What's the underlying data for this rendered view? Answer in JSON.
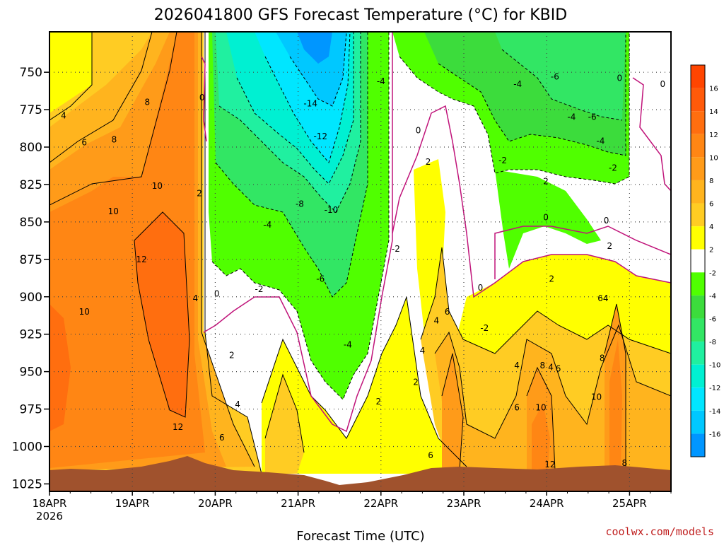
{
  "chart_data": {
    "type": "heatmap",
    "title": "2026041800 GFS Forecast Temperature (°C) for KBID",
    "xlabel": "Forecast Time (UTC)",
    "ylabel": "",
    "x_ticks": [
      {
        "label": "18APR",
        "sub": "2026",
        "day": 0
      },
      {
        "label": "19APR",
        "day": 1
      },
      {
        "label": "20APR",
        "day": 2
      },
      {
        "label": "21APR",
        "day": 3
      },
      {
        "label": "22APR",
        "day": 4
      },
      {
        "label": "23APR",
        "day": 5
      },
      {
        "label": "24APR",
        "day": 6
      },
      {
        "label": "25APR",
        "day": 7
      }
    ],
    "xlim_days": [
      0,
      7.5
    ],
    "y_ticks": [
      750,
      775,
      800,
      825,
      850,
      875,
      900,
      925,
      950,
      975,
      1000,
      1025
    ],
    "ylim": [
      1030,
      723
    ],
    "colorbar": {
      "labels": [
        16,
        14,
        12,
        10,
        8,
        6,
        4,
        2,
        -2,
        -4,
        -6,
        -8,
        -10,
        -12,
        -14,
        -16
      ],
      "bins": [
        {
          "lo": 16,
          "hi": 18,
          "color": "#ff4500"
        },
        {
          "lo": 14,
          "hi": 16,
          "color": "#ff5a0a"
        },
        {
          "lo": 12,
          "hi": 14,
          "color": "#ff6e0f"
        },
        {
          "lo": 10,
          "hi": 12,
          "color": "#ff8614"
        },
        {
          "lo": 8,
          "hi": 10,
          "color": "#ff9b19"
        },
        {
          "lo": 6,
          "hi": 8,
          "color": "#ffb41e"
        },
        {
          "lo": 4,
          "hi": 6,
          "color": "#ffcc23"
        },
        {
          "lo": 2,
          "hi": 4,
          "color": "#ffff00"
        },
        {
          "lo": -2,
          "hi": 2,
          "color": "#ffffff"
        },
        {
          "lo": -4,
          "hi": -2,
          "color": "#50ff00"
        },
        {
          "lo": -6,
          "hi": -4,
          "color": "#3cdc3c"
        },
        {
          "lo": -8,
          "hi": -6,
          "color": "#32e664"
        },
        {
          "lo": -10,
          "hi": -8,
          "color": "#20f0a0"
        },
        {
          "lo": -12,
          "hi": -10,
          "color": "#00f0d2"
        },
        {
          "lo": -14,
          "hi": -12,
          "color": "#00e6ff"
        },
        {
          "lo": -16,
          "hi": -14,
          "color": "#00c8ff"
        },
        {
          "lo": -18,
          "hi": -16,
          "color": "#0096ff"
        }
      ]
    },
    "contour_labels": [
      {
        "text": "4",
        "day": 0.17,
        "p": 779
      },
      {
        "text": "6",
        "day": 0.42,
        "p": 797
      },
      {
        "text": "8",
        "day": 0.78,
        "p": 795
      },
      {
        "text": "8",
        "day": 1.18,
        "p": 770
      },
      {
        "text": "10",
        "day": 1.3,
        "p": 826
      },
      {
        "text": "10",
        "day": 0.77,
        "p": 843
      },
      {
        "text": "12",
        "day": 1.11,
        "p": 875
      },
      {
        "text": "10",
        "day": 0.42,
        "p": 910
      },
      {
        "text": "12",
        "day": 1.55,
        "p": 987
      },
      {
        "text": "0",
        "day": 1.84,
        "p": 767
      },
      {
        "text": "2",
        "day": 1.81,
        "p": 831
      },
      {
        "text": "4",
        "day": 1.76,
        "p": 901
      },
      {
        "text": "0",
        "day": 2.02,
        "p": 898
      },
      {
        "text": "2",
        "day": 2.2,
        "p": 939
      },
      {
        "text": "4",
        "day": 2.27,
        "p": 972
      },
      {
        "text": "6",
        "day": 2.08,
        "p": 994
      },
      {
        "text": "-2",
        "day": 2.53,
        "p": 895
      },
      {
        "text": "-4",
        "day": 2.63,
        "p": 852
      },
      {
        "text": "-6",
        "day": 3.27,
        "p": 888
      },
      {
        "text": "-8",
        "day": 3.02,
        "p": 838
      },
      {
        "text": "-10",
        "day": 3.4,
        "p": 842
      },
      {
        "text": "-12",
        "day": 3.27,
        "p": 793
      },
      {
        "text": "-14",
        "day": 3.15,
        "p": 771
      },
      {
        "text": "-4",
        "day": 3.6,
        "p": 932
      },
      {
        "text": "-4",
        "day": 4.0,
        "p": 756
      },
      {
        "text": "-2",
        "day": 4.18,
        "p": 868
      },
      {
        "text": "2",
        "day": 3.97,
        "p": 970
      },
      {
        "text": "2",
        "day": 4.42,
        "p": 957
      },
      {
        "text": "2",
        "day": 4.57,
        "p": 810
      },
      {
        "text": "0",
        "day": 4.45,
        "p": 789
      },
      {
        "text": "4",
        "day": 4.5,
        "p": 936
      },
      {
        "text": "4",
        "day": 4.67,
        "p": 916
      },
      {
        "text": "6",
        "day": 4.8,
        "p": 910
      },
      {
        "text": "6",
        "day": 4.6,
        "p": 1006
      },
      {
        "text": "0",
        "day": 5.2,
        "p": 894
      },
      {
        "text": "-2",
        "day": 5.25,
        "p": 921
      },
      {
        "text": "-2",
        "day": 5.47,
        "p": 809
      },
      {
        "text": "-4",
        "day": 5.65,
        "p": 758
      },
      {
        "text": "-6",
        "day": 6.1,
        "p": 753
      },
      {
        "text": "-4",
        "day": 6.3,
        "p": 780
      },
      {
        "text": "-6",
        "day": 6.55,
        "p": 780
      },
      {
        "text": "-4",
        "day": 6.65,
        "p": 796
      },
      {
        "text": "-2",
        "day": 6.8,
        "p": 814
      },
      {
        "text": "2",
        "day": 5.99,
        "p": 823
      },
      {
        "text": "0",
        "day": 5.99,
        "p": 847
      },
      {
        "text": "0",
        "day": 6.72,
        "p": 849
      },
      {
        "text": "2",
        "day": 6.06,
        "p": 888
      },
      {
        "text": "2",
        "day": 6.76,
        "p": 866
      },
      {
        "text": "4",
        "day": 6.05,
        "p": 947
      },
      {
        "text": "4",
        "day": 5.64,
        "p": 946
      },
      {
        "text": "6",
        "day": 6.14,
        "p": 948
      },
      {
        "text": "8",
        "day": 5.95,
        "p": 946
      },
      {
        "text": "10",
        "day": 5.93,
        "p": 974
      },
      {
        "text": "6",
        "day": 5.64,
        "p": 974
      },
      {
        "text": "12",
        "day": 6.04,
        "p": 1012
      },
      {
        "text": "64",
        "day": 6.68,
        "p": 901
      },
      {
        "text": "8",
        "day": 6.67,
        "p": 941
      },
      {
        "text": "10",
        "day": 6.6,
        "p": 967
      },
      {
        "text": "8",
        "day": 6.94,
        "p": 1011
      },
      {
        "text": "0",
        "day": 6.88,
        "p": 754
      },
      {
        "text": "0",
        "day": 7.4,
        "p": 758
      }
    ]
  },
  "credit": "coolwx.com/models"
}
